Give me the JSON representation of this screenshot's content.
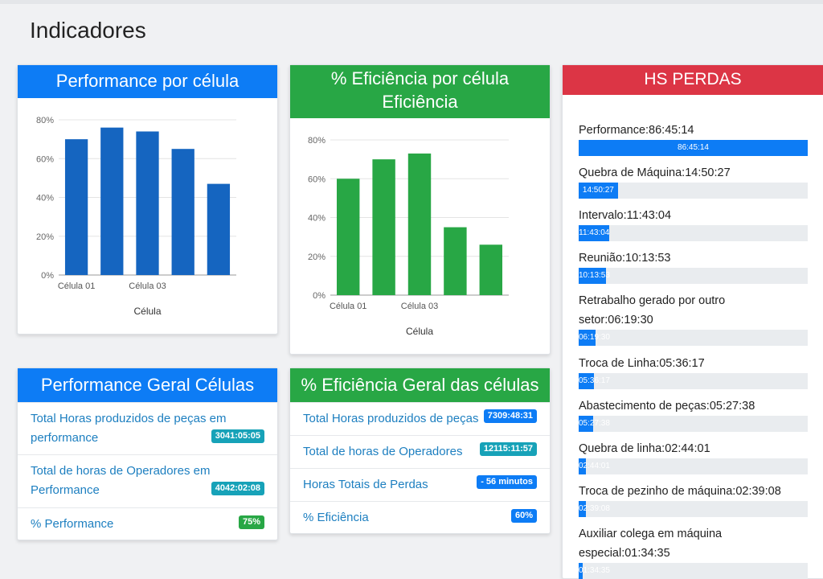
{
  "page": {
    "title": "Indicadores"
  },
  "perf_chart": {
    "header": "Performance por célula",
    "chart_data": {
      "type": "bar",
      "categories": [
        "Célula 01",
        "",
        "Célula 03",
        "",
        ""
      ],
      "values": [
        70,
        76,
        74,
        65,
        47
      ],
      "xlabel": "Célula",
      "ylabel": "",
      "ylim": [
        0,
        80
      ],
      "yticks": [
        "0%",
        "20%",
        "40%",
        "60%",
        "80%"
      ],
      "color": "#1565c0",
      "grid": true
    }
  },
  "eff_chart": {
    "header_line1": "% Eficiência por célula",
    "header_line2": "Eficiência",
    "chart_data": {
      "type": "bar",
      "categories": [
        "Célula 01",
        "",
        "Célula 03",
        "",
        ""
      ],
      "values": [
        60,
        70,
        73,
        35,
        26
      ],
      "xlabel": "Célula",
      "ylabel": "",
      "ylim": [
        0,
        80
      ],
      "yticks": [
        "0%",
        "20%",
        "40%",
        "60%",
        "80%"
      ],
      "color": "#28a745",
      "grid": true
    }
  },
  "perf_geral": {
    "header": "Performance Geral Células",
    "items": [
      {
        "line1": "Total Horas produzidos de peças em",
        "line2": "performance",
        "badge": "3041:05:05",
        "badge_color": "teal"
      },
      {
        "line1": "Total de horas de Operadores em",
        "line2": "Performance",
        "badge": "4042:02:08",
        "badge_color": "teal"
      },
      {
        "line1": "% Performance",
        "line2": "",
        "badge": "75%",
        "badge_color": "green"
      }
    ]
  },
  "eff_geral": {
    "header": "% Eficiência Geral das células",
    "items": [
      {
        "label": "Total Horas produzidos de peças",
        "badge": "7309:48:31",
        "badge_color": "blue"
      },
      {
        "label": "Total de horas de Operadores",
        "badge": "12115:11:57",
        "badge_color": "teal"
      },
      {
        "label": "Horas Totais de Perdas",
        "badge": "- 56 minutos",
        "badge_color": "blue"
      },
      {
        "label": "% Eficiência",
        "badge": "60%",
        "badge_color": "blue"
      }
    ]
  },
  "perdas": {
    "header": "HS PERDAS",
    "items": [
      {
        "line1": "Performance:86:45:14",
        "line2": "",
        "bar_text": "86:45:14",
        "fraction": 1.0
      },
      {
        "line1": "Quebra de Máquina:14:50:27",
        "line2": "",
        "bar_text": "14:50:27",
        "fraction": 0.171
      },
      {
        "line1": "Intervalo:11:43:04",
        "line2": "",
        "bar_text": "11:43:04",
        "fraction": 0.135
      },
      {
        "line1": "Reunião:10:13:53",
        "line2": "",
        "bar_text": "10:13:53",
        "fraction": 0.118
      },
      {
        "line1": "Retrabalho gerado por outro",
        "line2": "setor:06:19:30",
        "bar_text": "06:19:30",
        "fraction": 0.073
      },
      {
        "line1": "Troca de Linha:05:36:17",
        "line2": "",
        "bar_text": "05:36:17",
        "fraction": 0.065
      },
      {
        "line1": "Abastecimento de peças:05:27:38",
        "line2": "",
        "bar_text": "05:27:38",
        "fraction": 0.063
      },
      {
        "line1": "Quebra de linha:02:44:01",
        "line2": "",
        "bar_text": "02:44:01",
        "fraction": 0.032
      },
      {
        "line1": "Troca de pezinho de máquina:02:39:08",
        "line2": "",
        "bar_text": "02:39:08",
        "fraction": 0.031
      },
      {
        "line1": "Auxiliar colega em máquina",
        "line2": "especial:01:34:35",
        "bar_text": "01:34:35",
        "fraction": 0.018
      }
    ]
  }
}
